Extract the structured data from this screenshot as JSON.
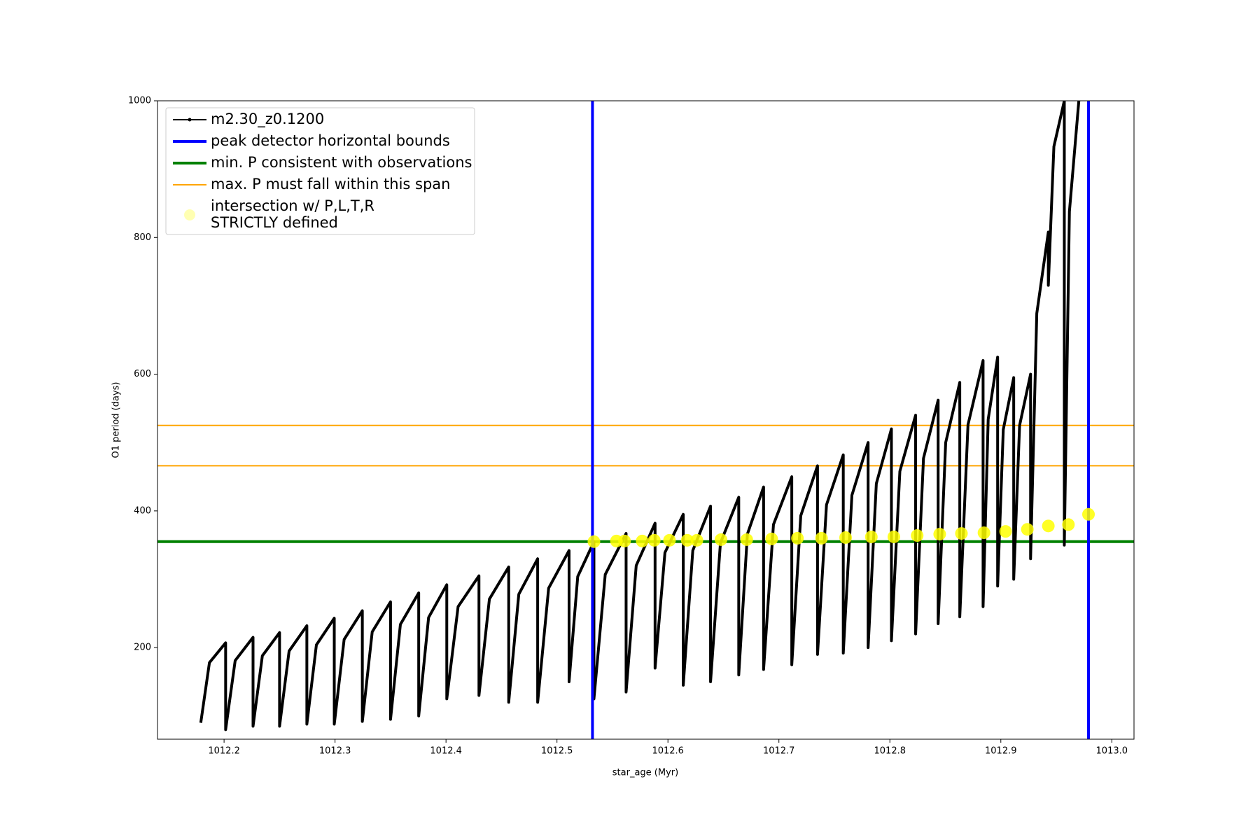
{
  "chart_data": {
    "type": "line",
    "xlabel": "star_age (Myr)",
    "ylabel": "O1 period (days)",
    "xlim": [
      1012.14,
      1013.02
    ],
    "ylim": [
      66,
      1000
    ],
    "xticks": [
      1012.2,
      1012.3,
      1012.4,
      1012.5,
      1012.6,
      1012.7,
      1012.8,
      1012.9,
      {
        "value": 1013,
        "label": "1013.0"
      }
    ],
    "yticks": [
      200,
      400,
      600,
      800,
      1000
    ],
    "legend": "upper left",
    "series": [
      {
        "name": "m2.30_z0.1200",
        "color": "#000000",
        "x": [
          1012.179,
          1012.1868,
          1012.2014,
          1012.2014,
          1012.21,
          1012.2261,
          1012.2261,
          1012.2345,
          1012.25,
          1012.25,
          1012.2586,
          1012.2746,
          1012.2746,
          1012.2832,
          1012.2993,
          1012.2993,
          1012.3082,
          1012.3246,
          1012.3246,
          1012.3335,
          1012.35,
          1012.35,
          1012.3589,
          1012.3754,
          1012.3754,
          1012.3843,
          1012.4007,
          1012.4007,
          1012.4109,
          1012.4297,
          1012.4297,
          1012.4391,
          1012.4565,
          1012.4565,
          1012.4656,
          1012.4826,
          1012.4826,
          1012.4925,
          1012.5109,
          1012.5109,
          1012.5187,
          1012.5333,
          1012.5333,
          1012.5435,
          1012.5623,
          1012.5623,
          1012.5714,
          1012.5884,
          1012.5884,
          1012.5973,
          1012.6138,
          1012.6138,
          1012.6224,
          1012.6384,
          1012.6384,
          1012.6473,
          1012.6638,
          1012.6638,
          1012.6716,
          1012.6862,
          1012.6862,
          1012.6951,
          1012.7116,
          1012.7116,
          1012.7197,
          1012.7348,
          1012.7348,
          1012.7429,
          1012.758,
          1012.758,
          1012.7658,
          1012.7804,
          1012.7804,
          1012.7878,
          1012.8014,
          1012.8014,
          1012.809,
          1012.8232,
          1012.8232,
          1012.8303,
          1012.8435,
          1012.8435,
          1012.8503,
          1012.863,
          1012.863,
          1012.8704,
          1012.884,
          1012.884,
          1012.8886,
          1012.8971,
          1012.8971,
          1012.9022,
          1012.9116,
          1012.9116,
          1012.9169,
          1012.9268,
          1012.9268,
          1012.9324,
          1012.9428,
          1012.9428,
          1012.9478,
          1012.9572,
          1012.9572,
          1012.9618,
          1012.9703
        ],
        "values": [
          90,
          178,
          207,
          80,
          181,
          215,
          85,
          188,
          222,
          85,
          195,
          232,
          88,
          204,
          243,
          88,
          212,
          254,
          92,
          223,
          267,
          95,
          234,
          280,
          100,
          244,
          292,
          125,
          260,
          305,
          130,
          271,
          318,
          120,
          278,
          330,
          120,
          287,
          342,
          150,
          304,
          355,
          125,
          307,
          367,
          135,
          320,
          382,
          170,
          339,
          395,
          145,
          342,
          407,
          150,
          353,
          420,
          160,
          366,
          435,
          168,
          380,
          450,
          175,
          393,
          466,
          190,
          409,
          482,
          192,
          423,
          500,
          200,
          440,
          520,
          210,
          458,
          540,
          220,
          477,
          562,
          235,
          500,
          588,
          245,
          526,
          620,
          260,
          534,
          625,
          290,
          519,
          595,
          300,
          525,
          600,
          330,
          689,
          808,
          730,
          933,
          1000,
          350,
          838,
          1000
        ]
      }
    ],
    "vlines": {
      "name": "peak detector horizontal bounds",
      "color": "#0000ff",
      "values": [
        1012.532,
        1012.979
      ]
    },
    "hlines": [
      {
        "name": "min. P consistent with observations",
        "color": "#008000",
        "values": [
          355
        ]
      },
      {
        "name": "max. P must fall within this span",
        "color": "#ffa500",
        "values": [
          466,
          525
        ]
      }
    ],
    "scatter": {
      "name": [
        "intersection w/ P,L,T,R",
        "STRICTLY defined"
      ],
      "color": "#ffff00",
      "x": [
        1012.5333,
        1012.5536,
        1012.5609,
        1012.5768,
        1012.5877,
        1012.6014,
        1012.6174,
        1012.6261,
        1012.6478,
        1012.671,
        1012.6935,
        1012.7167,
        1012.7384,
        1012.7601,
        1012.7833,
        1012.8036,
        1012.8246,
        1012.8449,
        1012.8645,
        1012.8848,
        1012.9043,
        1012.9239,
        1012.9428,
        1012.9609,
        1012.979
      ],
      "values": [
        355,
        356,
        356,
        356,
        357,
        357,
        357,
        357,
        358,
        358,
        359,
        360,
        360,
        361,
        362,
        362,
        364,
        366,
        367,
        368,
        370,
        373,
        378,
        380,
        395
      ]
    }
  }
}
